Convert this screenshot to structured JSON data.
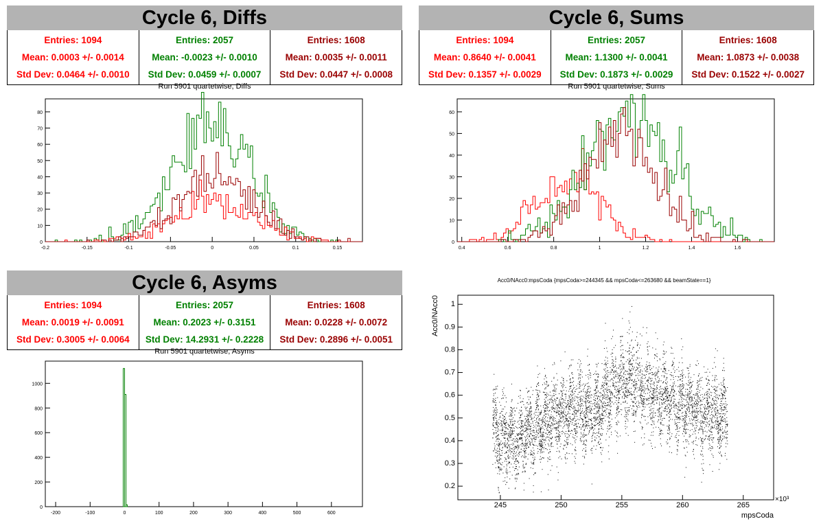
{
  "colors": {
    "red": "#ff0000",
    "green": "#008000",
    "darkred": "#990000"
  },
  "pads": [
    {
      "id": "diffs",
      "title": "Cycle 6, Diffs",
      "subtitle": "Run 5901 quartetwise, Diffs",
      "stats": [
        {
          "entries": "Entries: 1094",
          "mean": "Mean: 0.0003 +/- 0.0014",
          "std": "Std Dev: 0.0464 +/- 0.0010"
        },
        {
          "entries": "Entries: 2057",
          "mean": "Mean: -0.0023 +/- 0.0010",
          "std": "Std Dev: 0.0459 +/- 0.0007"
        },
        {
          "entries": "Entries: 1608",
          "mean": "Mean: 0.0035 +/- 0.0011",
          "std": "Std Dev: 0.0447 +/- 0.0008"
        }
      ]
    },
    {
      "id": "sums",
      "title": "Cycle 6, Sums",
      "subtitle": "Run 5901 quartetwise, Sums",
      "stats": [
        {
          "entries": "Entries: 1094",
          "mean": "Mean: 0.8640 +/- 0.0041",
          "std": "Std Dev: 0.1357 +/- 0.0029"
        },
        {
          "entries": "Entries: 2057",
          "mean": "Mean: 1.1300 +/- 0.0041",
          "std": "Std Dev: 0.1873 +/- 0.0029"
        },
        {
          "entries": "Entries: 1608",
          "mean": "Mean: 1.0873 +/- 0.0038",
          "std": "Std Dev: 0.1522 +/- 0.0027"
        }
      ]
    },
    {
      "id": "asyms",
      "title": "Cycle 6, Asyms",
      "subtitle": "Run 5901 quartetwise, Asyms",
      "stats": [
        {
          "entries": "Entries: 1094",
          "mean": "Mean: 0.0019 +/- 0.0091",
          "std": "Std Dev: 0.3005 +/- 0.0064"
        },
        {
          "entries": "Entries: 2057",
          "mean": "Mean: 0.2023 +/- 0.3151",
          "std": "Std Dev: 14.2931 +/- 0.2228"
        },
        {
          "entries": "Entries: 1608",
          "mean": "Mean: 0.0228 +/- 0.0072",
          "std": "Std Dev: 0.2896 +/- 0.0051"
        }
      ]
    }
  ],
  "chart_data": [
    {
      "type": "bar",
      "id": "diffs",
      "title": "Run 5901 quartetwise, Diffs",
      "xlim": [
        -0.2,
        0.18
      ],
      "ylim": [
        0,
        88
      ],
      "xticks": [
        -0.2,
        -0.15,
        -0.1,
        -0.05,
        0,
        0.05,
        0.1,
        0.15
      ],
      "xtick_labels": [
        "-0.2",
        "-0.15",
        "-0.1",
        "-0.05",
        "0",
        "0.05",
        "0.1",
        "0.15"
      ],
      "yticks": [
        0,
        10,
        20,
        30,
        40,
        50,
        60,
        70,
        80
      ],
      "ytick_labels": [
        "0",
        "10",
        "20",
        "30",
        "40",
        "50",
        "60",
        "70",
        "80"
      ],
      "series": [
        {
          "color": "green",
          "mean": -0.0023,
          "std": 0.0459,
          "entries": 2057,
          "peak": 84,
          "peak_x": -0.022
        },
        {
          "color": "red",
          "mean": 0.0003,
          "std": 0.0464,
          "entries": 1094,
          "peak": 40,
          "peak_x": 0.02
        },
        {
          "color": "darkred",
          "mean": 0.0035,
          "std": 0.0447,
          "entries": 1608,
          "peak": 55,
          "peak_x": 0.01
        }
      ]
    },
    {
      "type": "bar",
      "id": "sums",
      "title": "Run 5901 quartetwise, Sums",
      "xlim": [
        0.38,
        1.76
      ],
      "ylim": [
        0,
        66
      ],
      "xticks": [
        0.4,
        0.6,
        0.8,
        1,
        1.2,
        1.4,
        1.6
      ],
      "xtick_labels": [
        "0.4",
        "0.6",
        "0.8",
        "1",
        "1.2",
        "1.4",
        "1.6"
      ],
      "yticks": [
        0,
        10,
        20,
        30,
        40,
        50,
        60
      ],
      "ytick_labels": [
        "0",
        "10",
        "20",
        "30",
        "40",
        "50",
        "60"
      ],
      "series": [
        {
          "color": "red",
          "mean": 0.864,
          "std": 0.1357,
          "entries": 1094,
          "peak": 40,
          "peak_x": 0.87
        },
        {
          "color": "green",
          "mean": 1.13,
          "std": 0.1873,
          "entries": 2057,
          "peak": 64,
          "peak_x": 1.15
        },
        {
          "color": "darkred",
          "mean": 1.0873,
          "std": 0.1522,
          "entries": 1608,
          "peak": 64,
          "peak_x": 1.1
        }
      ]
    },
    {
      "type": "bar",
      "id": "asyms",
      "title": "Run 5901 quartetwise, Asyms",
      "xlim": [
        -230,
        690
      ],
      "ylim": [
        0,
        1180
      ],
      "xticks": [
        -200,
        -100,
        0,
        100,
        200,
        300,
        400,
        500,
        600
      ],
      "xtick_labels": [
        "-200",
        "-100",
        "0",
        "100",
        "200",
        "300",
        "400",
        "500",
        "600"
      ],
      "yticks": [
        0,
        200,
        400,
        600,
        800,
        1000
      ],
      "ytick_labels": [
        "0",
        "200",
        "400",
        "600",
        "800",
        "1000"
      ],
      "bins": [
        {
          "x0": -4,
          "x1": 0,
          "value": 1120
        },
        {
          "x0": 0,
          "x1": 4,
          "value": 910
        },
        {
          "x0": 4,
          "x1": 8,
          "value": 15
        }
      ],
      "series": [
        {
          "color": "green"
        }
      ]
    },
    {
      "type": "scatter",
      "id": "scatter",
      "title": "Acc0/NAcc0:mpsCoda {mpsCoda>=244345 && mpsCoda<=263680 && beamState==1}",
      "xlabel": "mpsCoda",
      "ylabel": "Acc0/NAcc0",
      "x_multiplier": "×10³",
      "xlim": [
        241.5,
        267.5
      ],
      "ylim": [
        0.14,
        1.04
      ],
      "xticks": [
        245,
        250,
        255,
        260,
        265
      ],
      "xtick_labels": [
        "245",
        "250",
        "255",
        "260",
        "265"
      ],
      "yticks": [
        0.2,
        0.3,
        0.4,
        0.5,
        0.6,
        0.7,
        0.8,
        0.9,
        1
      ],
      "ytick_labels": [
        "0.2",
        "0.3",
        "0.4",
        "0.5",
        "0.6",
        "0.7",
        "0.8",
        "0.9",
        "1"
      ],
      "x_range": [
        244.345,
        263.68
      ],
      "trend": [
        {
          "x": 244.4,
          "y": 0.44
        },
        {
          "x": 246,
          "y": 0.4
        },
        {
          "x": 247.5,
          "y": 0.45
        },
        {
          "x": 249,
          "y": 0.5
        },
        {
          "x": 251,
          "y": 0.53
        },
        {
          "x": 253,
          "y": 0.52
        },
        {
          "x": 254,
          "y": 0.63
        },
        {
          "x": 256,
          "y": 0.66
        },
        {
          "x": 258,
          "y": 0.6
        },
        {
          "x": 260,
          "y": 0.55
        },
        {
          "x": 262,
          "y": 0.52
        },
        {
          "x": 263.7,
          "y": 0.51
        }
      ],
      "spread": 0.085,
      "point_count": 5200
    }
  ]
}
